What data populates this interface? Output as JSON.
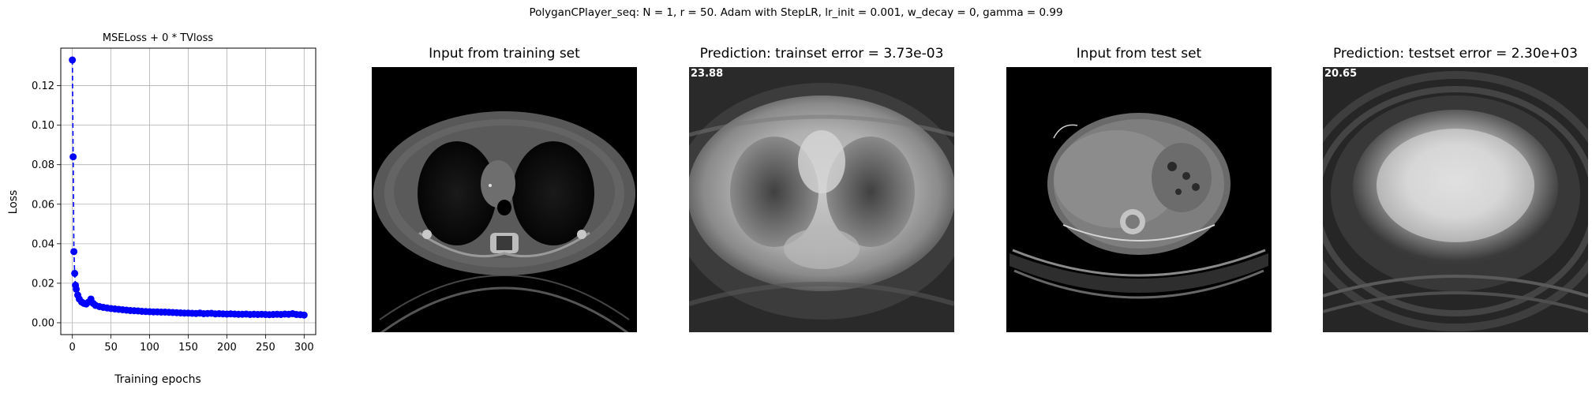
{
  "suptitle": "PolyganCPlayer_seq: N = 1, r = 50. Adam with StepLR, lr_init = 0.001, w_decay = 0, gamma = 0.99",
  "panels": [
    {
      "title": "Input from training set",
      "corner_label": "",
      "kind": "ct-chest-input"
    },
    {
      "title": "Prediction: trainset error = 3.73e-03",
      "corner_label": "23.88",
      "kind": "ct-chest-prediction"
    },
    {
      "title": "Input from test set",
      "corner_label": "",
      "kind": "ct-abdomen-input"
    },
    {
      "title": "Prediction: testset error = 2.30e+03",
      "corner_label": "20.65",
      "kind": "ct-abdomen-prediction"
    }
  ],
  "chart_data": {
    "type": "line",
    "title": "MSELoss + 0 * TVloss",
    "xlabel": "Training epochs",
    "ylabel": "Loss",
    "xlim": [
      -15,
      315
    ],
    "ylim": [
      -0.006,
      0.139
    ],
    "xticks": [
      0,
      50,
      100,
      150,
      200,
      250,
      300
    ],
    "yticks": [
      0.0,
      0.02,
      0.04,
      0.06,
      0.08,
      0.1,
      0.12
    ],
    "ytick_labels": [
      "0.00",
      "0.02",
      "0.04",
      "0.06",
      "0.08",
      "0.10",
      "0.12"
    ],
    "grid": true,
    "color": "#0000ff",
    "line_style": "dashed",
    "marker": "circle",
    "x": [
      0,
      1,
      2,
      3,
      4,
      5,
      7,
      9,
      12,
      15,
      18,
      21,
      24,
      27,
      30,
      35,
      40,
      45,
      50,
      55,
      60,
      65,
      70,
      75,
      80,
      85,
      90,
      95,
      100,
      105,
      110,
      115,
      120,
      125,
      130,
      135,
      140,
      145,
      150,
      155,
      160,
      165,
      170,
      175,
      180,
      185,
      190,
      195,
      200,
      205,
      210,
      215,
      220,
      225,
      230,
      235,
      240,
      245,
      250,
      255,
      260,
      265,
      270,
      275,
      280,
      285,
      290,
      295,
      300
    ],
    "y": [
      0.133,
      0.084,
      0.036,
      0.025,
      0.019,
      0.017,
      0.014,
      0.012,
      0.0105,
      0.0098,
      0.0095,
      0.0105,
      0.012,
      0.0098,
      0.0088,
      0.0082,
      0.0078,
      0.0075,
      0.0072,
      0.007,
      0.0068,
      0.0066,
      0.0064,
      0.0062,
      0.0061,
      0.006,
      0.0058,
      0.0057,
      0.0056,
      0.0055,
      0.0055,
      0.0054,
      0.0054,
      0.0053,
      0.0052,
      0.0051,
      0.005,
      0.0049,
      0.0049,
      0.0048,
      0.0047,
      0.0049,
      0.0046,
      0.0047,
      0.0048,
      0.0045,
      0.0046,
      0.0045,
      0.0044,
      0.0045,
      0.0044,
      0.0043,
      0.0043,
      0.0044,
      0.0042,
      0.0043,
      0.0042,
      0.0043,
      0.0042,
      0.0041,
      0.0042,
      0.0043,
      0.0042,
      0.0044,
      0.0043,
      0.0046,
      0.0042,
      0.0041,
      0.0039
    ]
  }
}
